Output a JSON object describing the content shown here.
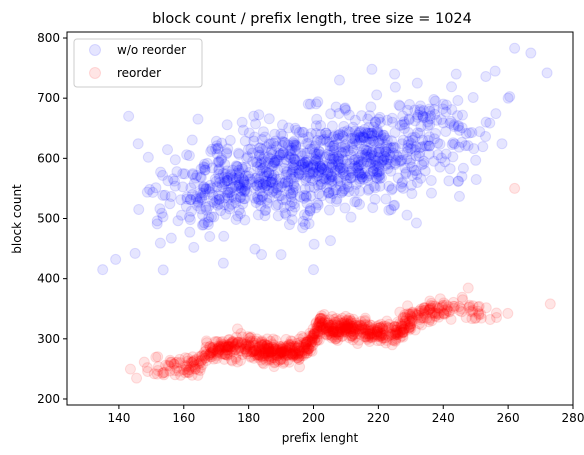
{
  "chart_data": {
    "type": "scatter",
    "title": "block count / prefix length, tree size = 1024",
    "xlabel": "prefix lenght",
    "ylabel": "block count",
    "xlim": [
      124,
      280
    ],
    "ylim": [
      190,
      810
    ],
    "xticks": [
      140,
      160,
      180,
      200,
      220,
      240,
      260,
      280
    ],
    "yticks": [
      200,
      300,
      400,
      500,
      600,
      700,
      800
    ],
    "grid": false,
    "legend_position": "top-left",
    "marker_alpha": 0.1,
    "series": [
      {
        "name": "w/o reorder",
        "color": "#0000ff",
        "trend": {
          "x": [
            130,
            140,
            150,
            160,
            170,
            180,
            190,
            200,
            210,
            220,
            230,
            240,
            250,
            260,
            272
          ],
          "y": [
            495,
            510,
            530,
            545,
            558,
            568,
            575,
            585,
            597,
            605,
            615,
            625,
            632,
            640,
            655
          ]
        },
        "spread": 40,
        "count": 1024,
        "outliers": [
          [
            135,
            415
          ],
          [
            139,
            432
          ],
          [
            143,
            670
          ],
          [
            145,
            442
          ],
          [
            190,
            440
          ],
          [
            208,
            730
          ],
          [
            210,
            680
          ],
          [
            218,
            748
          ],
          [
            225,
            740
          ],
          [
            232,
            725
          ],
          [
            262,
            783
          ],
          [
            267,
            775
          ],
          [
            272,
            742
          ],
          [
            260,
            700
          ],
          [
            244,
            740
          ],
          [
            256,
            745
          ],
          [
            200,
            415
          ],
          [
            178,
            660
          ]
        ]
      },
      {
        "name": "reorder",
        "color": "#ff0000",
        "trend": {
          "x": [
            130,
            135,
            140,
            150,
            160,
            165,
            167,
            170,
            175,
            180,
            185,
            190,
            195,
            199,
            202,
            205,
            210,
            215,
            220,
            226,
            230,
            235,
            240,
            245,
            250,
            255,
            260,
            265,
            272
          ],
          "y": [
            235,
            245,
            250,
            252,
            255,
            258,
            280,
            283,
            285,
            288,
            280,
            278,
            280,
            290,
            325,
            315,
            318,
            315,
            310,
            312,
            330,
            345,
            350,
            352,
            345,
            342,
            346,
            344,
            345
          ]
        },
        "spread": 9,
        "count": 1024,
        "outliers": [
          [
            262,
            550
          ],
          [
            273,
            358
          ],
          [
            229,
            355
          ],
          [
            210,
            330
          ]
        ]
      }
    ]
  }
}
